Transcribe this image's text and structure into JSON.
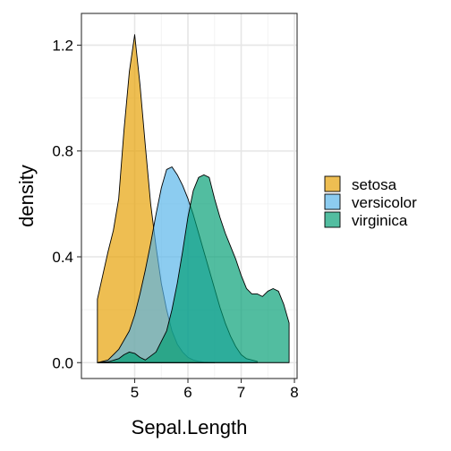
{
  "chart_data": {
    "type": "area",
    "xlabel": "Sepal.Length",
    "ylabel": "density",
    "xlim": [
      4.0,
      8.05
    ],
    "ylim": [
      -0.06,
      1.32
    ],
    "x_ticks": [
      5,
      6,
      7,
      8
    ],
    "y_ticks": [
      0.0,
      0.4,
      0.8,
      1.2
    ],
    "y_tick_labels": [
      "0.0",
      "0.4",
      "0.8",
      "1.2"
    ],
    "grid": true,
    "legend_position": "right",
    "series": [
      {
        "name": "setosa",
        "color": "#E69F00",
        "x": [
          4.3,
          4.4,
          4.5,
          4.6,
          4.7,
          4.8,
          4.9,
          5.0,
          5.1,
          5.2,
          5.3,
          5.4,
          5.5,
          5.6,
          5.7,
          5.8,
          5.9,
          6.0,
          6.1,
          6.2,
          6.3,
          6.5
        ],
        "y": [
          0.24,
          0.33,
          0.42,
          0.5,
          0.62,
          0.88,
          1.1,
          1.24,
          1.05,
          0.82,
          0.6,
          0.44,
          0.3,
          0.2,
          0.12,
          0.07,
          0.04,
          0.02,
          0.01,
          0.005,
          0.002,
          0.0
        ]
      },
      {
        "name": "versicolor",
        "color": "#56B4E9",
        "x": [
          4.3,
          4.5,
          4.7,
          4.9,
          5.0,
          5.1,
          5.2,
          5.3,
          5.4,
          5.5,
          5.6,
          5.7,
          5.8,
          5.9,
          6.0,
          6.1,
          6.2,
          6.3,
          6.4,
          6.5,
          6.6,
          6.7,
          6.8,
          6.9,
          7.0,
          7.1,
          7.3
        ],
        "y": [
          0.0,
          0.01,
          0.05,
          0.12,
          0.18,
          0.26,
          0.35,
          0.45,
          0.56,
          0.66,
          0.73,
          0.74,
          0.71,
          0.67,
          0.62,
          0.56,
          0.49,
          0.42,
          0.35,
          0.28,
          0.21,
          0.15,
          0.1,
          0.06,
          0.03,
          0.015,
          0.005
        ]
      },
      {
        "name": "virginica",
        "color": "#009E73",
        "x": [
          4.3,
          4.5,
          4.7,
          4.8,
          4.9,
          5.0,
          5.1,
          5.2,
          5.4,
          5.6,
          5.7,
          5.8,
          5.9,
          6.0,
          6.1,
          6.2,
          6.3,
          6.4,
          6.5,
          6.6,
          6.7,
          6.8,
          6.9,
          7.0,
          7.1,
          7.2,
          7.3,
          7.4,
          7.5,
          7.6,
          7.7,
          7.8,
          7.9
        ],
        "y": [
          0.0,
          0.003,
          0.015,
          0.03,
          0.04,
          0.035,
          0.02,
          0.01,
          0.04,
          0.12,
          0.2,
          0.3,
          0.42,
          0.55,
          0.65,
          0.7,
          0.71,
          0.7,
          0.62,
          0.55,
          0.49,
          0.44,
          0.39,
          0.33,
          0.28,
          0.26,
          0.26,
          0.25,
          0.27,
          0.28,
          0.27,
          0.22,
          0.15
        ]
      }
    ]
  }
}
